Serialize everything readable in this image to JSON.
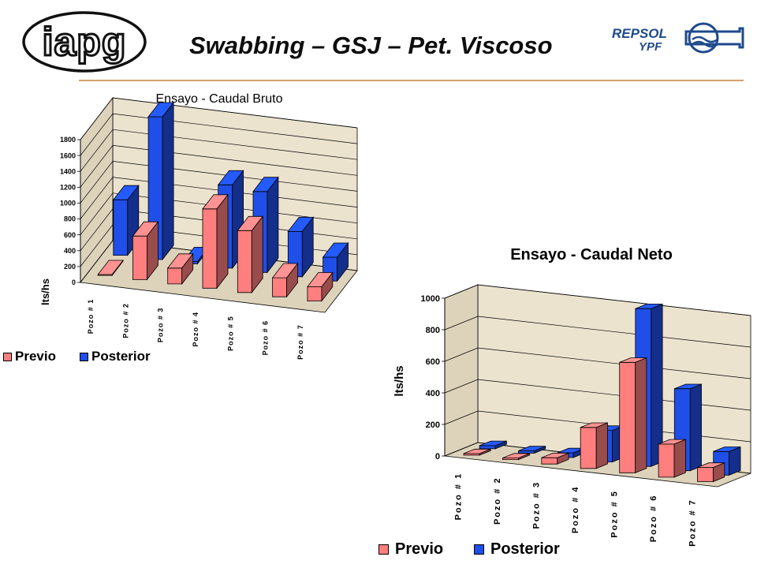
{
  "slide": {
    "title": "Swabbing – GSJ – Pet. Viscoso",
    "logo_left_text": "iapg",
    "logo_right_text": [
      "REPSOL",
      "YPF"
    ]
  },
  "colors": {
    "previo": "#ff7f7f",
    "posterior": "#1f4fe8",
    "wall": "#ece3cf",
    "floor": "#ddd3bb",
    "grid": "#000000",
    "rule": "#d8a070",
    "logo_blue": "#1e4a8c"
  },
  "chart_data": [
    {
      "type": "bar",
      "title": "Ensayo - Caudal Bruto",
      "ylabel": "lts/hs",
      "xlabel": "",
      "ylim": [
        0,
        1800
      ],
      "yticks": [
        0,
        200,
        400,
        600,
        800,
        1000,
        1200,
        1400,
        1600,
        1800
      ],
      "categories": [
        "Pozo # 1",
        "Pozo # 2",
        "Pozo # 3",
        "Pozo # 4",
        "Pozo # 5",
        "Pozo # 6",
        "Pozo # 7"
      ],
      "series": [
        {
          "name": "Previo",
          "values": [
            10,
            550,
            200,
            1000,
            780,
            240,
            180
          ]
        },
        {
          "name": "Posterior",
          "values": [
            700,
            1800,
            30,
            1050,
            1020,
            570,
            300
          ]
        }
      ],
      "legend": "bottom-left",
      "grid": true
    },
    {
      "type": "bar",
      "title": "Ensayo - Caudal Neto",
      "ylabel": "lts/hs",
      "xlabel": "",
      "ylim": [
        0,
        1000
      ],
      "yticks": [
        0,
        200,
        400,
        600,
        800,
        1000
      ],
      "categories": [
        "Pozo # 1",
        "Pozo # 2",
        "Pozo # 3",
        "Pozo # 4",
        "Pozo # 5",
        "Pozo # 6",
        "Pozo # 7"
      ],
      "series": [
        {
          "name": "Previo",
          "values": [
            10,
            10,
            40,
            260,
            700,
            210,
            90
          ]
        },
        {
          "name": "Posterior",
          "values": [
            20,
            15,
            30,
            200,
            1000,
            520,
            150
          ]
        }
      ],
      "legend": "bottom",
      "grid": true
    }
  ]
}
